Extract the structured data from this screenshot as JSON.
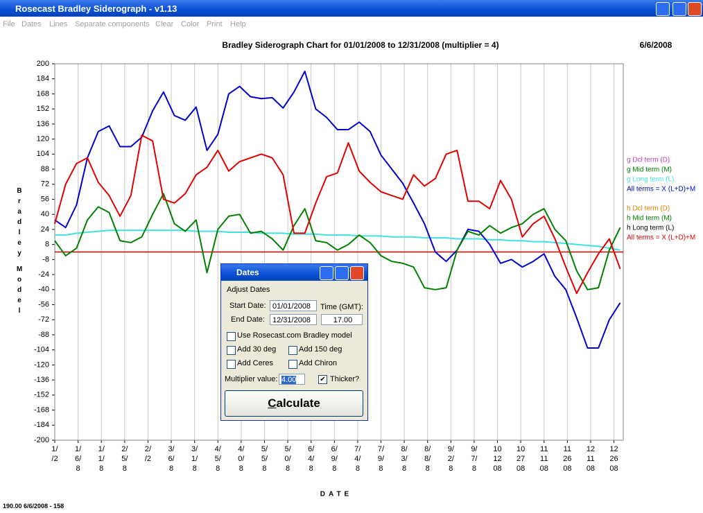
{
  "window": {
    "title": "Rosecast Bradley Siderograph - v1.13",
    "menu": [
      "File",
      "Dates",
      "Lines",
      "Separate components",
      "Clear",
      "Color",
      "Print",
      "Help"
    ],
    "status": "190.00  6/6/2008 - 158"
  },
  "chart_data": {
    "type": "line",
    "title": "Bradley Siderograph Chart for 01/01/2008 to 12/31/2008 (multiplier = 4)",
    "date": "6/6/2008",
    "y_label": [
      "Bradley",
      "Model"
    ],
    "x_label": "DATE",
    "ylim": [
      -200,
      200
    ],
    "yticks": [
      200,
      184,
      168,
      152,
      136,
      120,
      104,
      88,
      72,
      56,
      40,
      24,
      8,
      -8,
      -24,
      -40,
      -56,
      -72,
      -88,
      -104,
      -120,
      -136,
      -152,
      -168,
      -184,
      -200
    ],
    "xlim": [
      1,
      367
    ],
    "xgrid": true,
    "xticks": [
      {
        "value": 1,
        "label": [
          "1/",
          "/2"
        ]
      },
      {
        "value": 16,
        "label": [
          "1/",
          "6/",
          "8"
        ]
      },
      {
        "value": 31,
        "label": [
          "1/",
          "1/",
          "8"
        ]
      },
      {
        "value": 46,
        "label": [
          "2/",
          "5/",
          "8"
        ]
      },
      {
        "value": 61,
        "label": [
          "2/",
          "/2"
        ]
      },
      {
        "value": 76,
        "label": [
          "3/",
          "6/",
          "8"
        ]
      },
      {
        "value": 91,
        "label": [
          "3/",
          "1/",
          "8"
        ]
      },
      {
        "value": 106,
        "label": [
          "4/",
          "5/",
          "8"
        ]
      },
      {
        "value": 121,
        "label": [
          "4/",
          "0/",
          "8"
        ]
      },
      {
        "value": 136,
        "label": [
          "5/",
          "5/",
          "8"
        ]
      },
      {
        "value": 151,
        "label": [
          "5/",
          "0/",
          "8"
        ]
      },
      {
        "value": 166,
        "label": [
          "6/",
          "4/",
          "8"
        ]
      },
      {
        "value": 181,
        "label": [
          "6/",
          "9/",
          "8"
        ]
      },
      {
        "value": 196,
        "label": [
          "7/",
          "4/",
          "8"
        ]
      },
      {
        "value": 211,
        "label": [
          "7/",
          "9/",
          "8"
        ]
      },
      {
        "value": 226,
        "label": [
          "8/",
          "3/",
          "8"
        ]
      },
      {
        "value": 241,
        "label": [
          "8/",
          "8/",
          "8"
        ]
      },
      {
        "value": 256,
        "label": [
          "9/",
          "2/",
          "8"
        ]
      },
      {
        "value": 271,
        "label": [
          "9/",
          "7/",
          "8"
        ]
      },
      {
        "value": 286,
        "label": [
          "10",
          "12",
          "08"
        ]
      },
      {
        "value": 301,
        "label": [
          "10",
          "27",
          "08"
        ]
      },
      {
        "value": 316,
        "label": [
          "11",
          "11",
          "08"
        ]
      },
      {
        "value": 331,
        "label": [
          "11",
          "26",
          "08"
        ]
      },
      {
        "value": 346,
        "label": [
          "12",
          "11",
          "08"
        ]
      },
      {
        "value": 361,
        "label": [
          "12",
          "26",
          "08"
        ]
      }
    ],
    "x": [
      1,
      8,
      15,
      22,
      29,
      36,
      43,
      50,
      57,
      64,
      71,
      78,
      85,
      92,
      99,
      106,
      113,
      120,
      127,
      134,
      141,
      148,
      155,
      162,
      169,
      176,
      183,
      190,
      197,
      204,
      211,
      218,
      225,
      232,
      239,
      246,
      253,
      260,
      267,
      274,
      281,
      288,
      295,
      302,
      309,
      316,
      323,
      330,
      337,
      344,
      351,
      358,
      365
    ],
    "series": [
      {
        "name": "g Dcl term (D)",
        "color": "#c040c0"
      },
      {
        "name": "g Mid term (M)",
        "color": "#008000"
      },
      {
        "name": "g Long term (L)",
        "color": "#40e0e0",
        "values": [
          18,
          18,
          20,
          21,
          22,
          23,
          23,
          23,
          23,
          23,
          23,
          23,
          23,
          22,
          22,
          22,
          21,
          21,
          21,
          20,
          20,
          20,
          19,
          19,
          19,
          18,
          18,
          18,
          17,
          17,
          17,
          16,
          16,
          16,
          15,
          15,
          15,
          14,
          14,
          14,
          13,
          13,
          12,
          12,
          11,
          11,
          10,
          9,
          8,
          7,
          6,
          4,
          2
        ]
      },
      {
        "name": "All terms = X (L+D)+M",
        "color": "#0000c8",
        "values": [
          34,
          26,
          50,
          100,
          128,
          134,
          112,
          112,
          122,
          150,
          170,
          145,
          140,
          154,
          108,
          125,
          168,
          176,
          165,
          163,
          164,
          153,
          170,
          192,
          152,
          143,
          130,
          130,
          138,
          128,
          103,
          88,
          73,
          52,
          30,
          0,
          -10,
          2,
          24,
          22,
          8,
          -12,
          -8,
          -16,
          -10,
          -2,
          -26,
          -40,
          -70,
          -102,
          -102,
          -72,
          -54
        ]
      },
      {
        "name": "h Dcl term (D)",
        "color": "#e08000"
      },
      {
        "name": "h Mid term (M)",
        "color": "#008000",
        "values": [
          12,
          -4,
          4,
          34,
          48,
          42,
          12,
          10,
          16,
          40,
          62,
          30,
          22,
          34,
          -22,
          24,
          38,
          40,
          20,
          22,
          14,
          2,
          28,
          46,
          12,
          10,
          2,
          8,
          18,
          10,
          -4,
          -10,
          -12,
          -16,
          -38,
          -40,
          -38,
          2,
          22,
          18,
          28,
          20,
          26,
          30,
          40,
          46,
          24,
          12,
          -20,
          -40,
          -38,
          2,
          26
        ]
      },
      {
        "name": "h Long term (L)",
        "color": "#000000"
      },
      {
        "name": "All terms = X (L+D)+M",
        "color": "#e00000",
        "values": [
          30,
          72,
          94,
          100,
          74,
          60,
          38,
          60,
          124,
          118,
          56,
          52,
          62,
          82,
          90,
          108,
          86,
          96,
          100,
          104,
          100,
          82,
          20,
          20,
          52,
          80,
          84,
          116,
          86,
          74,
          64,
          60,
          56,
          82,
          70,
          78,
          104,
          108,
          54,
          54,
          46,
          76,
          56,
          16,
          30,
          38,
          14,
          -16,
          -44,
          -22,
          -2,
          14,
          -18
        ]
      }
    ]
  },
  "dialog": {
    "title": "Dates",
    "group": "Adjust Dates",
    "start_label": "Start Date:",
    "start": "01/01/2008",
    "time_label": "Time (GMT):",
    "end_label": "End Date:",
    "end": "12/31/2008",
    "time": "17.00",
    "checks": [
      {
        "label": "Use Rosecast.com Bradley model",
        "checked": false
      },
      {
        "label": "Add 30 deg",
        "checked": false
      },
      {
        "label": "Add 150 deg",
        "checked": false
      },
      {
        "label": "Add Ceres",
        "checked": false
      },
      {
        "label": "Add Chiron",
        "checked": false
      }
    ],
    "multiplier_label": "Multiplier value:",
    "multiplier": "4.00",
    "thicker": {
      "label": "Thicker?",
      "checked": true
    },
    "button": "Calculate"
  }
}
